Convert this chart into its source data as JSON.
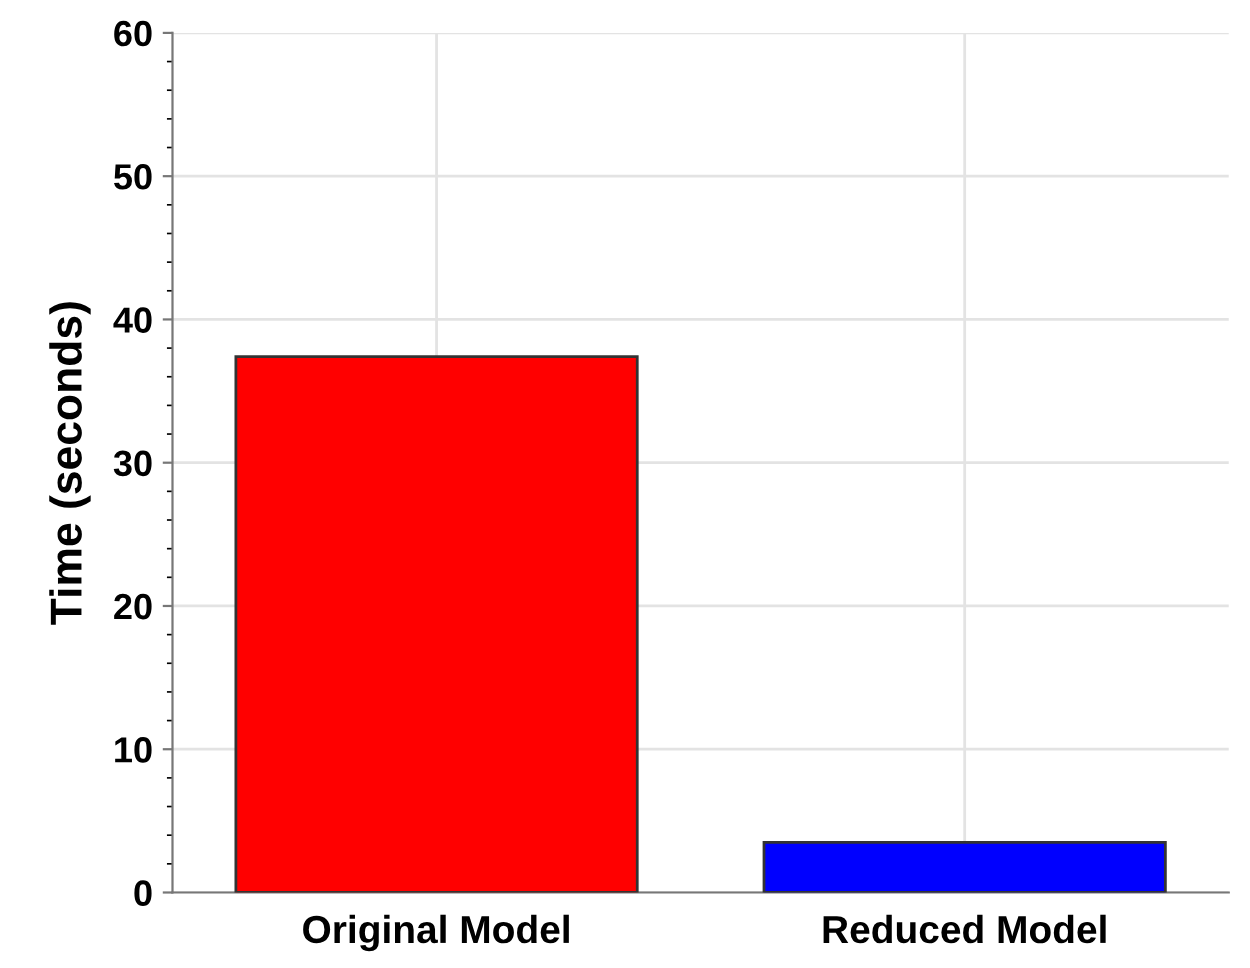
{
  "chart_data": {
    "type": "bar",
    "ylabel": "Time (seconds)",
    "categories": [
      "Original Model",
      "Reduced Model"
    ],
    "values": [
      37.4,
      3.5
    ],
    "colors": [
      "#ff0000",
      "#0000ff"
    ],
    "ylim": [
      0,
      60
    ],
    "yticks": [
      0,
      10,
      20,
      30,
      40,
      50,
      60
    ],
    "grid": true
  }
}
